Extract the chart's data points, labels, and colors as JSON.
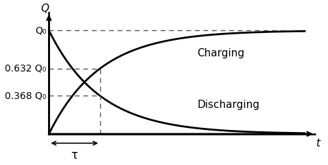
{
  "title": "",
  "background_color": "#ffffff",
  "x_label": "t",
  "y_label": "Q",
  "tau": 1.0,
  "Q0": 1.0,
  "x_max": 5.0,
  "y_max": 1.15,
  "line_color": "#000000",
  "line_width": 2.0,
  "dashed_color": "#555555",
  "axis_color": "#000000",
  "label_charging": "Charging",
  "label_discharging": "Discharging",
  "y_tick_Q0": 1.0,
  "y_tick_0632": 0.632,
  "y_tick_0368": 0.368,
  "label_Q0": "Q₀",
  "label_0632Q0": "0.632 Q₀",
  "label_0368Q0": "0.368 Q₀",
  "tau_label": "τ",
  "font_size_labels": 11,
  "font_size_ticks": 10
}
